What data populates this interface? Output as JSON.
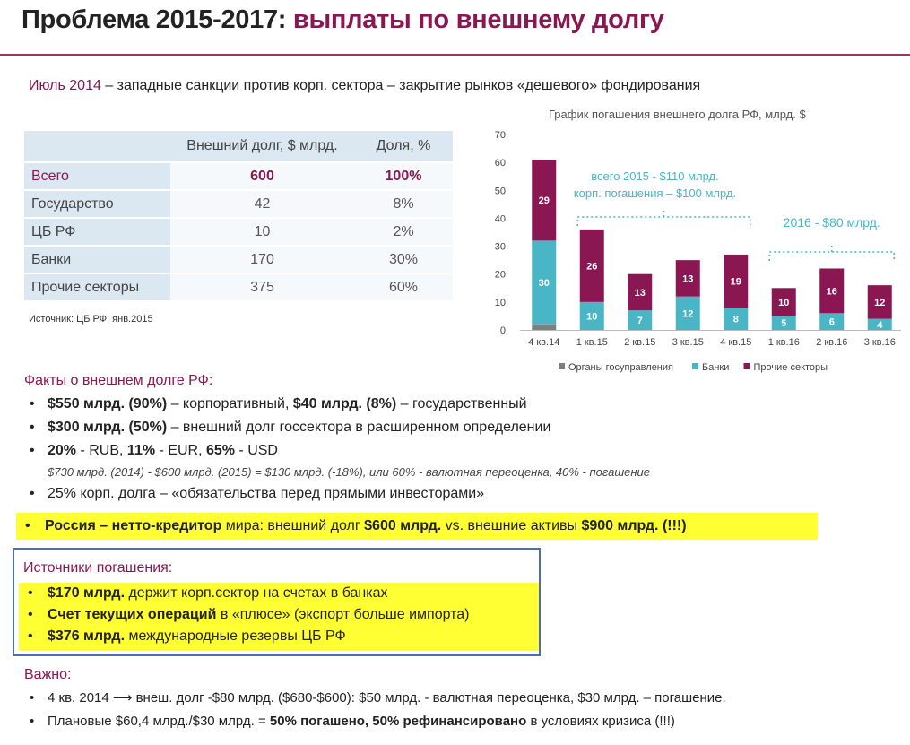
{
  "header": {
    "title_black": "Проблема 2015-2017:",
    "title_colored": "выплаты по внешнему долгу"
  },
  "subtitle": {
    "date": "Июль 2014",
    "text": " – западные санкции против корп. сектора – закрытие рынков «дешевого» фондирования"
  },
  "debt_table": {
    "headers": [
      "",
      "Внешний долг, $ млрд.",
      "Доля, %"
    ],
    "rows": [
      {
        "name": "Всего",
        "debt": "600",
        "share": "100%"
      },
      {
        "name": "Государство",
        "debt": "42",
        "share": "8%"
      },
      {
        "name": "ЦБ РФ",
        "debt": "10",
        "share": "2%"
      },
      {
        "name": "Банки",
        "debt": "170",
        "share": "30%"
      },
      {
        "name": "Прочие секторы",
        "debt": "375",
        "share": "60%"
      }
    ],
    "source": "Источник: ЦБ РФ, янв.2015"
  },
  "chart_data": {
    "type": "bar",
    "stacked": true,
    "title": "График погашения внешнего долга РФ, млрд. $",
    "categories": [
      "4 кв.14",
      "1 кв.15",
      "2 кв.15",
      "3 кв.15",
      "4 кв.15",
      "1 кв.16",
      "2 кв.16",
      "3 кв.16"
    ],
    "ylim": [
      0,
      70
    ],
    "yticks": [
      0,
      10,
      20,
      30,
      40,
      50,
      60,
      70
    ],
    "legend_position": "bottom",
    "series": [
      {
        "name": "Органы госуправления",
        "color": "#7f7f7f",
        "values": [
          2,
          0,
          0,
          0,
          0,
          0,
          0,
          0
        ],
        "labels": [
          "",
          "",
          "",
          "",
          "",
          "",
          "",
          ""
        ]
      },
      {
        "name": "Банки",
        "color": "#4ab5c4",
        "values": [
          30,
          10,
          7,
          12,
          8,
          5,
          6,
          4
        ],
        "labels": [
          "30",
          "10",
          "7",
          "12",
          "8",
          "5",
          "6",
          "4"
        ]
      },
      {
        "name": "Прочие секторы",
        "color": "#8a1752",
        "values": [
          29,
          26,
          13,
          13,
          19,
          10,
          16,
          12
        ],
        "labels": [
          "29",
          "26",
          "13",
          "13",
          "19",
          "10",
          "16",
          "12"
        ]
      }
    ],
    "annotations": [
      {
        "lines": [
          "всего 2015 - $110 млрд.",
          "корп. погашения – $100 млрд."
        ],
        "span": [
          1,
          4
        ],
        "color": "#4ab5c4"
      },
      {
        "lines": [
          "2016 - $80 млрд."
        ],
        "span": [
          5,
          7
        ],
        "color": "#4ab5c4"
      }
    ]
  },
  "facts": {
    "heading": "Факты о внешнем долге РФ:",
    "item1": {
      "a": "$550 млрд. (90%)",
      "b": " – корпоративный, ",
      "c": "$40 млрд. (8%)",
      "d": " – государственный"
    },
    "item2": {
      "a": "$300 млрд. (50%)",
      "b": " – внешний долг госсектора в расширенном определении"
    },
    "item3": {
      "a": "20%",
      "b": " - RUB, ",
      "c": "11%",
      "d": " - EUR, ",
      "e": "65%",
      "f": " - USD"
    },
    "note": "$730 млрд. (2014) - $600 млрд. (2015) = $130 млрд. (-18%), или 60% - валютная переоценка, 40% - погашение",
    "item4": "25% корп. долга – «обязательства перед прямыми инвесторами»",
    "item5": {
      "a": "Россия – нетто-кредитор",
      "b": " мира: внешний долг ",
      "c": "$600 млрд.",
      "d": " vs. внешние активы ",
      "e": "$900 млрд. (!!!)"
    }
  },
  "sources": {
    "heading": "Источники погашения:",
    "item1": {
      "a": "$170 млрд.",
      "b": " держит корп.сектор на счетах в банках"
    },
    "item2": {
      "a": "Счет текущих операций",
      "b": " в «плюсе» (экспорт больше импорта)"
    },
    "item3": {
      "a": "$376 млрд.",
      "b": " международные резервы ЦБ РФ"
    }
  },
  "important": {
    "heading": "Важно:",
    "item1": "4 кв. 2014 ⟶ внеш. долг -$80 млрд. ($680-$600): $50 млрд. - валютная переоценка, $30 млрд. – погашение.",
    "item2": {
      "a": "Плановые $60,4 млрд./$30 млрд. = ",
      "b": "50% погашено, 50% рефинансировано",
      "c": " в условиях кризиса (!!!)"
    }
  }
}
